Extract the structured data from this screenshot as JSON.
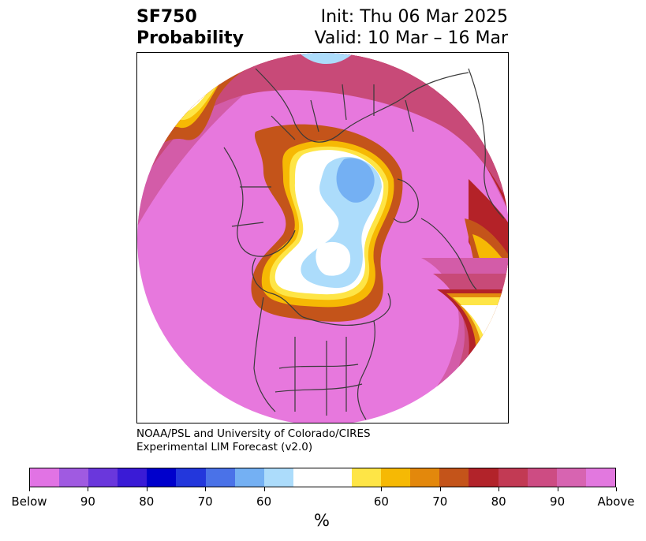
{
  "title": {
    "left_line1": "SF750",
    "left_line2": "Probability",
    "right_line1": "Init: Thu 06 Mar 2025",
    "right_line2": "Valid: 10 Mar – 16 Mar"
  },
  "credit": {
    "line1": "NOAA/PSL and University of Colorado/CIRES",
    "line2": "Experimental LIM Forecast (v2.0)"
  },
  "colorbar": {
    "unit": "%",
    "colors": [
      "#e173e4",
      "#a05ae1",
      "#6a37dc",
      "#3a1bd6",
      "#0000cc",
      "#2337dc",
      "#4a72e8",
      "#74b0f3",
      "#acdcfb",
      "#ffffff",
      "#ffffff",
      "#fee546",
      "#f6b904",
      "#e3880c",
      "#c4541a",
      "#b2232a",
      "#c23a54",
      "#cd4c83",
      "#d764b1",
      "#e278df"
    ],
    "labels": [
      "Below",
      "90",
      "80",
      "70",
      "60",
      "60",
      "70",
      "80",
      "90",
      "Above"
    ]
  },
  "map": {
    "palette": {
      "above95": "#e778dd",
      "above90": "#d35ca8",
      "above85": "#c84a78",
      "above80": "#b42228",
      "above75": "#c4541a",
      "above70": "#e38a0e",
      "above65": "#f6b904",
      "above60": "#fee546",
      "neutral": "#ffffff",
      "below60": "#acdcfb",
      "below70": "#74b0f3",
      "below80": "#4a72e8",
      "coast": "#3a3a3a"
    }
  }
}
